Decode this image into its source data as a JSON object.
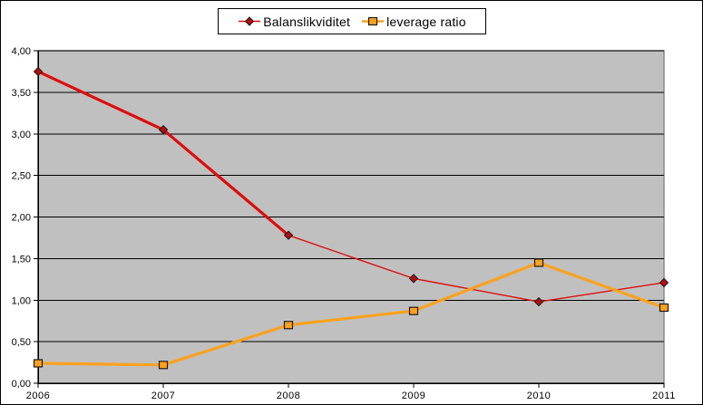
{
  "chart_data": {
    "type": "line",
    "title": "",
    "x": [
      "2006",
      "2007",
      "2008",
      "2009",
      "2010",
      "2011"
    ],
    "series": [
      {
        "name": "Balanslikviditet",
        "color": "#dd0d0d",
        "marker": "diamond",
        "marker_fill": "#b30f0f",
        "marker_stroke": "#1a1a1a",
        "segment_widths": [
          3.2,
          3.2,
          1.4,
          1.4,
          1.4
        ],
        "legend_line_width": 1.6,
        "values": [
          3.75,
          3.05,
          1.78,
          1.26,
          0.98,
          1.21
        ]
      },
      {
        "name": "leverage ratio",
        "color": "#faa21f",
        "marker": "square",
        "marker_fill": "#ffa21f",
        "marker_stroke": "#1a1a1a",
        "segment_widths": [
          3.2,
          3.2,
          3.2,
          3.2,
          3.2
        ],
        "legend_line_width": 2.4,
        "values": [
          0.24,
          0.22,
          0.7,
          0.87,
          1.45,
          0.91
        ]
      }
    ],
    "ylim": [
      0,
      4
    ],
    "ytick_step": 0.5,
    "ytick_labels": [
      "0,00",
      "0,50",
      "1,00",
      "1,50",
      "2,00",
      "2,50",
      "3,00",
      "3,50",
      "4,00"
    ],
    "grid": "horizontal-only",
    "legend_position": "top-center",
    "colors": {
      "plot_bg": "#c0c0c0",
      "plot_border": "#8c8c8c",
      "gridline": "#000000",
      "axis": "#000000",
      "chart_bg": "#ffffff",
      "text": "#000000"
    }
  }
}
